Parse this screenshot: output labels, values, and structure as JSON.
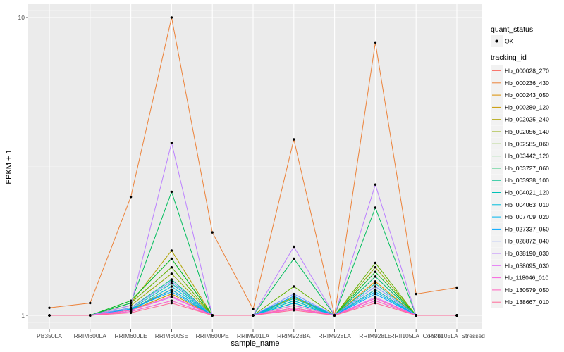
{
  "chart_data": {
    "type": "line",
    "xlabel": "sample_name",
    "ylabel": "FPKM + 1",
    "y_scale": "log10",
    "ylim": [
      1,
      10
    ],
    "y_ticks": [
      {
        "value": 1,
        "label": "1"
      },
      {
        "value": 10,
        "label": "10"
      }
    ],
    "grid": true,
    "legend_position": "right",
    "categories": [
      "PB350LA",
      "RRIM600LA",
      "RRIM600LE",
      "RRIM600SE",
      "RRIM600PE",
      "RRIM901LA",
      "RRIM928BA",
      "RRIM928LA",
      "RRIM928LE",
      "RRII105LA_Control",
      "RRII105LA_Stressed"
    ],
    "points_legend": {
      "title": "quant_status",
      "entries": [
        {
          "label": "OK"
        }
      ]
    },
    "lines_legend_title": "tracking_id",
    "series": [
      {
        "name": "Hb_000028_270",
        "color": "#F8766D",
        "values": [
          1.0,
          1.0,
          1.03,
          1.12,
          1.0,
          1.0,
          1.05,
          1.0,
          1.12,
          1.0,
          1.0
        ]
      },
      {
        "name": "Hb_000236_430",
        "color": "#EC8239",
        "values": [
          1.06,
          1.1,
          2.5,
          10.0,
          1.9,
          1.05,
          3.9,
          1.0,
          8.25,
          1.18,
          1.24
        ]
      },
      {
        "name": "Hb_000243_050",
        "color": "#DB8E00",
        "values": [
          1.0,
          1.0,
          1.05,
          1.22,
          1.0,
          1.0,
          1.08,
          1.0,
          1.3,
          1.0,
          1.0
        ]
      },
      {
        "name": "Hb_000280_120",
        "color": "#C79800",
        "values": [
          1.0,
          1.0,
          1.04,
          1.18,
          1.0,
          1.0,
          1.06,
          1.0,
          1.22,
          1.0,
          1.0
        ]
      },
      {
        "name": "Hb_002025_240",
        "color": "#AEA200",
        "values": [
          1.0,
          1.0,
          1.1,
          1.65,
          1.0,
          1.0,
          1.1,
          1.0,
          1.35,
          1.0,
          1.0
        ]
      },
      {
        "name": "Hb_002056_140",
        "color": "#8FAA00",
        "values": [
          1.0,
          1.0,
          1.08,
          1.38,
          1.0,
          1.0,
          1.15,
          1.0,
          1.45,
          1.0,
          1.0
        ]
      },
      {
        "name": "Hb_002585_060",
        "color": "#64B200",
        "values": [
          1.0,
          1.0,
          1.1,
          1.45,
          1.0,
          1.0,
          1.25,
          1.0,
          1.5,
          1.0,
          1.0
        ]
      },
      {
        "name": "Hb_003442_120",
        "color": "#00B81B",
        "values": [
          1.0,
          1.0,
          1.12,
          1.55,
          1.0,
          1.0,
          1.12,
          1.0,
          1.4,
          1.0,
          1.0
        ]
      },
      {
        "name": "Hb_003727_060",
        "color": "#00BD5C",
        "values": [
          1.0,
          1.0,
          1.1,
          2.6,
          1.0,
          1.0,
          1.55,
          1.0,
          2.3,
          1.0,
          1.0
        ]
      },
      {
        "name": "Hb_003938_100",
        "color": "#00C08E",
        "values": [
          1.0,
          1.0,
          1.06,
          1.32,
          1.0,
          1.0,
          1.1,
          1.0,
          1.35,
          1.0,
          1.0
        ]
      },
      {
        "name": "Hb_004021_120",
        "color": "#00C1B7",
        "values": [
          1.0,
          1.0,
          1.05,
          1.28,
          1.0,
          1.0,
          1.14,
          1.0,
          1.28,
          1.0,
          1.0
        ]
      },
      {
        "name": "Hb_004063_010",
        "color": "#00BDDC",
        "values": [
          1.0,
          1.0,
          1.04,
          1.25,
          1.0,
          1.0,
          1.12,
          1.0,
          1.22,
          1.0,
          1.0
        ]
      },
      {
        "name": "Hb_007709_020",
        "color": "#00B5EE",
        "values": [
          1.0,
          1.0,
          1.04,
          1.22,
          1.0,
          1.0,
          1.1,
          1.0,
          1.2,
          1.0,
          1.0
        ]
      },
      {
        "name": "Hb_027337_050",
        "color": "#00A7FF",
        "values": [
          1.0,
          1.0,
          1.05,
          1.2,
          1.0,
          1.0,
          1.16,
          1.0,
          1.18,
          1.0,
          1.0
        ]
      },
      {
        "name": "Hb_028872_040",
        "color": "#7F96FF",
        "values": [
          1.0,
          1.0,
          1.06,
          1.3,
          1.0,
          1.0,
          1.18,
          1.0,
          1.25,
          1.0,
          1.0
        ]
      },
      {
        "name": "Hb_038190_030",
        "color": "#BC81FF",
        "values": [
          1.0,
          1.0,
          1.08,
          3.8,
          1.0,
          1.0,
          1.7,
          1.0,
          2.75,
          1.0,
          1.0
        ]
      },
      {
        "name": "Hb_058095_030",
        "color": "#E26EF7",
        "values": [
          1.0,
          1.0,
          1.04,
          1.15,
          1.0,
          1.0,
          1.08,
          1.0,
          1.15,
          1.0,
          1.0
        ]
      },
      {
        "name": "Hb_118046_010",
        "color": "#F863DF",
        "values": [
          1.0,
          1.0,
          1.03,
          1.12,
          1.0,
          1.0,
          1.05,
          1.0,
          1.12,
          1.0,
          1.0
        ]
      },
      {
        "name": "Hb_130579_050",
        "color": "#FF62BF",
        "values": [
          1.0,
          1.0,
          1.04,
          1.16,
          1.0,
          1.0,
          1.06,
          1.0,
          1.14,
          1.0,
          1.0
        ]
      },
      {
        "name": "Hb_138667_010",
        "color": "#FF6A98",
        "values": [
          1.0,
          1.0,
          1.02,
          1.1,
          1.0,
          1.0,
          1.04,
          1.0,
          1.1,
          1.0,
          1.0
        ]
      }
    ]
  }
}
